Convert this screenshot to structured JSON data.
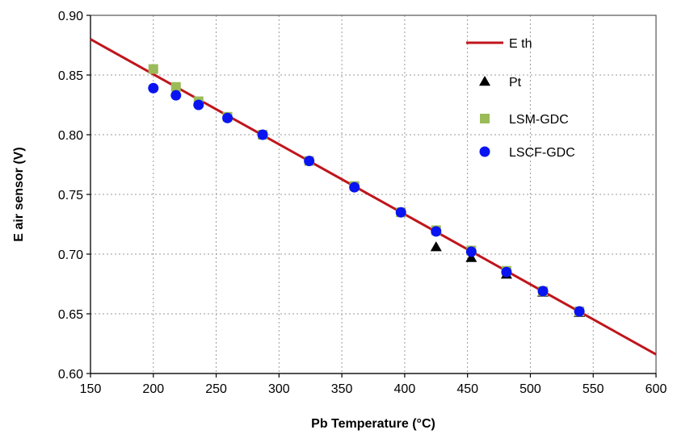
{
  "chart_data": {
    "type": "scatter",
    "xlabel": "Pb Temperature (°C)",
    "ylabel": "E air sensor (V)",
    "xlim": [
      150,
      600
    ],
    "ylim": [
      0.6,
      0.9
    ],
    "x_ticks": [
      150,
      200,
      250,
      300,
      350,
      400,
      450,
      500,
      550,
      600
    ],
    "y_ticks": [
      0.6,
      0.65,
      0.7,
      0.75,
      0.8,
      0.85,
      0.9
    ],
    "x_tick_labels": [
      "150",
      "200",
      "250",
      "300",
      "350",
      "400",
      "450",
      "500",
      "550",
      "600"
    ],
    "y_tick_labels": [
      "0.60",
      "0.65",
      "0.70",
      "0.75",
      "0.80",
      "0.85",
      "0.90"
    ],
    "grid": true,
    "legend_position": "top-right",
    "series": [
      {
        "name": "E th",
        "kind": "line",
        "color": "#c0151c",
        "x": [
          150,
          600
        ],
        "y": [
          0.88,
          0.616
        ]
      },
      {
        "name": "Pt",
        "kind": "marker",
        "marker": "triangle",
        "color": "#000000",
        "x": [
          425,
          453,
          481,
          510,
          539
        ],
        "y": [
          0.706,
          0.697,
          0.683,
          0.668,
          0.651
        ]
      },
      {
        "name": "LSM-GDC",
        "kind": "marker",
        "marker": "square",
        "color": "#9bbb59",
        "x": [
          200,
          218,
          236,
          259,
          287,
          324,
          360,
          397,
          425,
          453,
          481,
          510,
          539
        ],
        "y": [
          0.855,
          0.84,
          0.828,
          0.815,
          0.8,
          0.778,
          0.757,
          0.735,
          0.72,
          0.703,
          0.686,
          0.669,
          0.652
        ]
      },
      {
        "name": "LSCF-GDC",
        "kind": "marker",
        "marker": "circle",
        "color": "#0a14f0",
        "x": [
          200,
          218,
          236,
          259,
          287,
          324,
          360,
          397,
          425,
          453,
          481,
          510,
          539
        ],
        "y": [
          0.839,
          0.833,
          0.825,
          0.814,
          0.8,
          0.778,
          0.756,
          0.735,
          0.719,
          0.702,
          0.685,
          0.669,
          0.652
        ]
      }
    ]
  }
}
